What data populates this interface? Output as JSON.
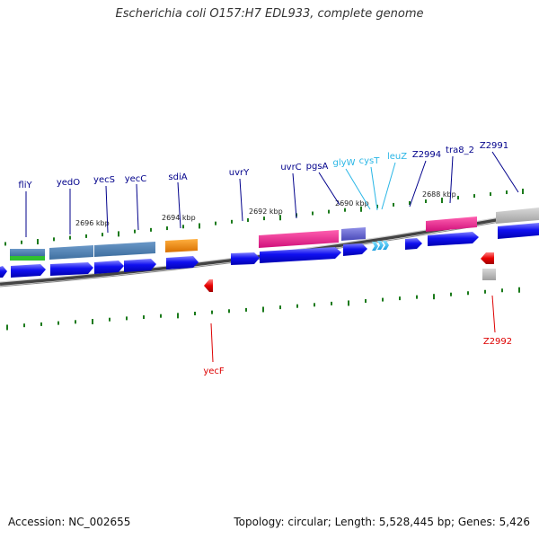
{
  "title": "Escherichia coli O157:H7 EDL933, complete genome",
  "footer": {
    "accession": "Accession: NC_002655",
    "summary": "Topology: circular; Length: 5,528,445 bp; Genes: 5,426"
  },
  "tick_labels": [
    "2696 kbp",
    "2694 kbp",
    "2692 kbp",
    "2690 kbp",
    "2688 kbp"
  ],
  "genes": [
    {
      "name": "fliY",
      "color": "#00008b"
    },
    {
      "name": "yedO",
      "color": "#00008b"
    },
    {
      "name": "yecS",
      "color": "#00008b"
    },
    {
      "name": "yecC",
      "color": "#00008b"
    },
    {
      "name": "sdiA",
      "color": "#00008b"
    },
    {
      "name": "uvrY",
      "color": "#00008b"
    },
    {
      "name": "uvrC",
      "color": "#00008b"
    },
    {
      "name": "pgsA",
      "color": "#00008b"
    },
    {
      "name": "glyW",
      "color": "#29b6e6"
    },
    {
      "name": "cysT",
      "color": "#29b6e6"
    },
    {
      "name": "leuZ",
      "color": "#29b6e6"
    },
    {
      "name": "Z2994",
      "color": "#00008b"
    },
    {
      "name": "tra8_2",
      "color": "#00008b"
    },
    {
      "name": "Z2991",
      "color": "#00008b"
    },
    {
      "name": "yecF",
      "color": "#dd0000"
    },
    {
      "name": "Z2992",
      "color": "#dd0000"
    }
  ],
  "colors": {
    "cds_forward": "#0a0af0",
    "cds_reverse": "#e80000",
    "trna": "#39c2f0",
    "tick": "#1b7a1b",
    "backbone": "#666666",
    "flagellar": "#4a7fb8",
    "regulator": "#f08a00",
    "repair": "#e8208a",
    "transport": "#6060d0",
    "hypothetical": "#bbbbbb"
  }
}
